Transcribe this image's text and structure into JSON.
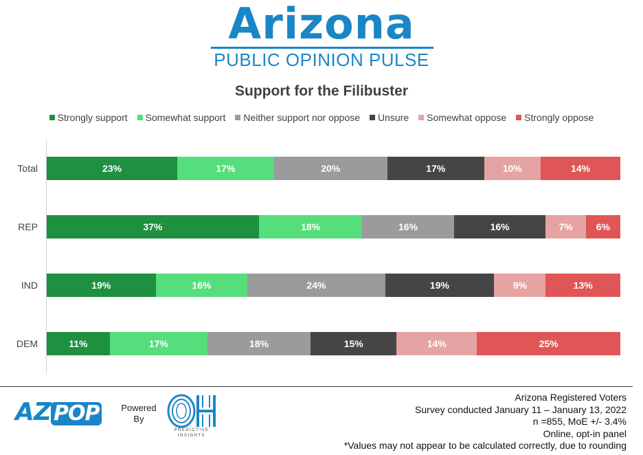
{
  "header": {
    "logo_title": "Arizona",
    "logo_subtitle": "PUBLIC OPINION PULSE"
  },
  "chart_data": {
    "type": "bar",
    "orientation": "horizontal",
    "stacked": true,
    "title": "Support for the Filibuster",
    "categories": [
      "Total",
      "REP",
      "IND",
      "DEM"
    ],
    "series": [
      {
        "name": "Strongly support",
        "color": "#1e9040",
        "values": [
          23,
          37,
          19,
          11
        ],
        "labels": [
          "23%",
          "37%",
          "19%",
          "11%"
        ]
      },
      {
        "name": "Somewhat support",
        "color": "#57de7c",
        "values": [
          17,
          18,
          16,
          17
        ],
        "labels": [
          "17%",
          "18%",
          "16%",
          "17%"
        ]
      },
      {
        "name": "Neither support nor oppose",
        "color": "#9b9b9b",
        "values": [
          20,
          16,
          24,
          18
        ],
        "labels": [
          "20%",
          "16%",
          "24%",
          "18%"
        ]
      },
      {
        "name": "Unsure",
        "color": "#454545",
        "values": [
          17,
          16,
          19,
          15
        ],
        "labels": [
          "17%",
          "16%",
          "19%",
          "15%"
        ]
      },
      {
        "name": "Somewhat oppose",
        "color": "#e6a3a3",
        "values": [
          10,
          7,
          9,
          14
        ],
        "labels": [
          "10%",
          "7%",
          "9%",
          "14%"
        ]
      },
      {
        "name": "Strongly oppose",
        "color": "#e05656",
        "values": [
          14,
          6,
          13,
          25
        ],
        "labels": [
          "14%",
          "6%",
          "13%",
          "25%"
        ]
      }
    ],
    "legend_position": "top",
    "grid": false
  },
  "footer": {
    "az_logo_left": "AZ",
    "az_logo_right": "POP",
    "powered_line1": "Powered",
    "powered_line2": "By",
    "oh_logo": "OH",
    "oh_sub": "PREDICTIVE INSIGHTS",
    "notes": [
      "Arizona Registered Voters",
      "Survey conducted January 11 – January 13, 2022",
      "n =855, MoE +/- 3.4%",
      "Online, opt-in panel",
      "*Values may not appear to be calculated correctly, due to rounding"
    ]
  },
  "colors": {
    "brand_blue": "#1a86c7"
  }
}
